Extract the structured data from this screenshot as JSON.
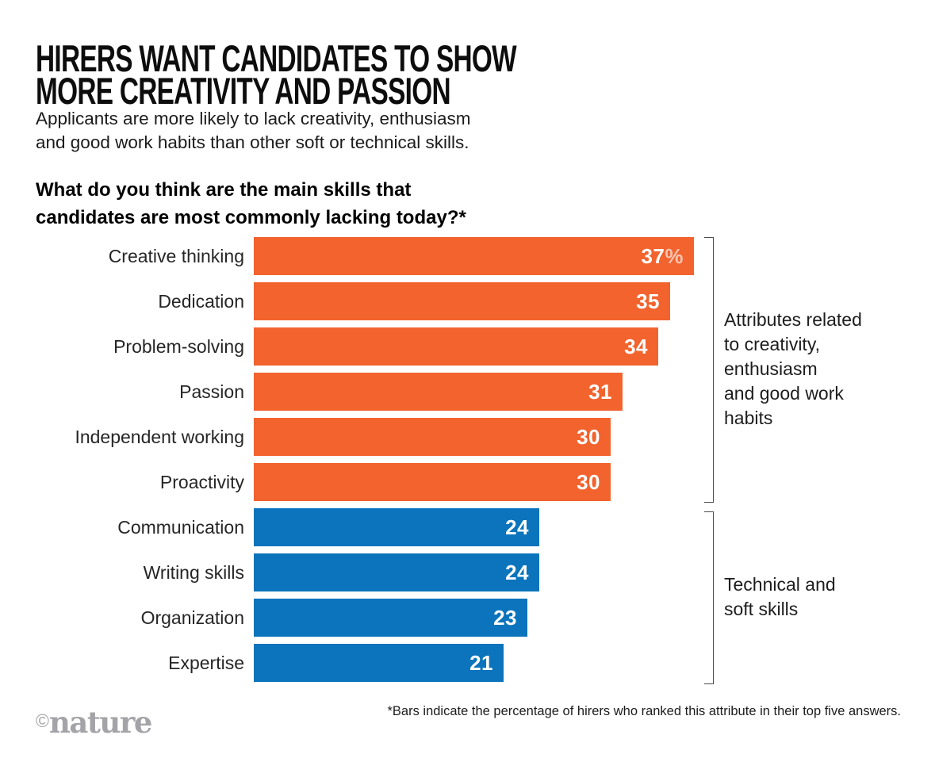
{
  "colors": {
    "orange": "#F2632E",
    "blue": "#0B74BC",
    "bracket": "#4A4A4A",
    "credit_gray": "#A4A4A8"
  },
  "header": {
    "title": "HIRERS WANT CANDIDATES TO SHOW\nMORE CREATIVITY AND PASSION",
    "subtitle": "Applicants are more likely to lack creativity, enthusiasm\nand good work habits than other soft or technical skills.",
    "question": "What do you think are the main skills that\ncandidates are most commonly lacking today?*"
  },
  "chart_data": {
    "type": "bar",
    "orientation": "horizontal",
    "title": "What do you think are the main skills that candidates are most commonly lacking today?*",
    "xlabel": "Percentage of hirers",
    "ylabel": "",
    "xlim": [
      0,
      37
    ],
    "grid": false,
    "categories": [
      "Creative thinking",
      "Dedication",
      "Problem-solving",
      "Passion",
      "Independent working",
      "Proactivity",
      "Communication",
      "Writing skills",
      "Organization",
      "Expertise"
    ],
    "values": [
      37,
      35,
      34,
      31,
      30,
      30,
      24,
      24,
      23,
      21
    ],
    "groups": [
      {
        "name": "Attributes related to creativity, enthusiasm and good work habits",
        "color": "#F2632E",
        "items": [
          {
            "label": "Creative thinking",
            "value": 37,
            "suffix": "%"
          },
          {
            "label": "Dedication",
            "value": 35
          },
          {
            "label": "Problem-solving",
            "value": 34
          },
          {
            "label": "Passion",
            "value": 31
          },
          {
            "label": "Independent working",
            "value": 30
          },
          {
            "label": "Proactivity",
            "value": 30
          }
        ]
      },
      {
        "name": "Technical and soft skills",
        "color": "#0B74BC",
        "items": [
          {
            "label": "Communication",
            "value": 24
          },
          {
            "label": "Writing skills",
            "value": 24
          },
          {
            "label": "Organization",
            "value": 23
          },
          {
            "label": "Expertise",
            "value": 21
          }
        ]
      }
    ]
  },
  "annotations": {
    "group1": "Attributes related\nto creativity,\nenthusiasm\nand good work\nhabits",
    "group2": "Technical and\nsoft skills"
  },
  "footer": {
    "footnote": "*Bars indicate the percentage of hirers who ranked this attribute in their top five answers.",
    "credit_symbol": "©",
    "credit_name": "nature"
  }
}
